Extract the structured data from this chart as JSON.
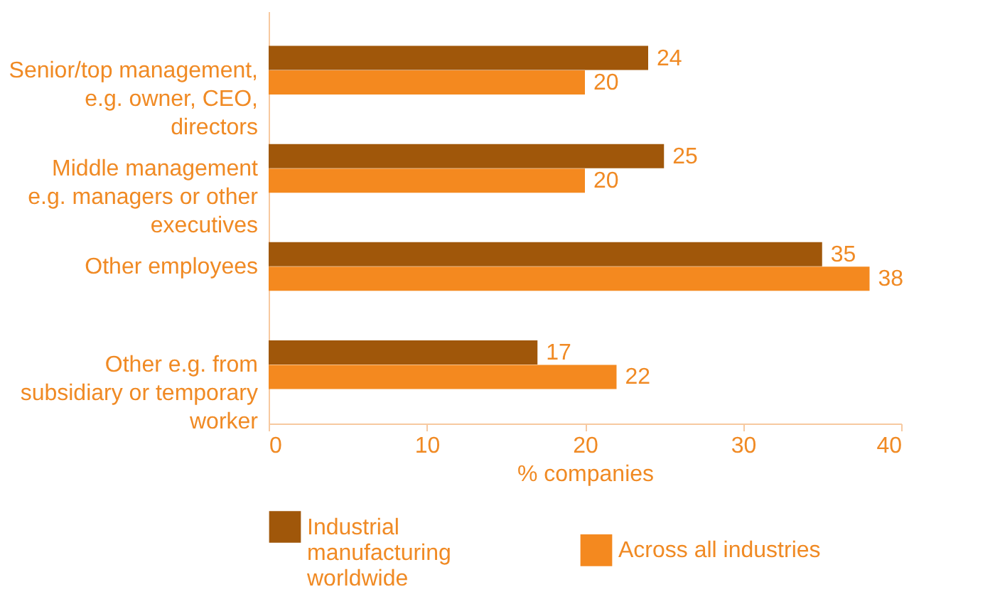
{
  "chart_data": {
    "type": "bar",
    "orientation": "horizontal",
    "xlabel": "% companies",
    "categories": [
      "Senior/top management,\ne.g. owner, CEO,\ndirectors",
      "Middle management\ne.g. managers or other\nexecutives",
      "Other employees",
      "Other e.g. from\nsubsidiary or temporary\nworker"
    ],
    "series": [
      {
        "name": "Industrial\nmanufacturing\nworldwide",
        "color": "#a0570a",
        "values": [
          24,
          25,
          35,
          17
        ]
      },
      {
        "name": "Across all industries",
        "color": "#f4891f",
        "values": [
          20,
          20,
          38,
          22
        ]
      }
    ],
    "xlim": [
      0,
      40
    ],
    "xticks": [
      0,
      10,
      20,
      30,
      40
    ],
    "data_labels": true,
    "grid": false,
    "legend": "bottom"
  }
}
